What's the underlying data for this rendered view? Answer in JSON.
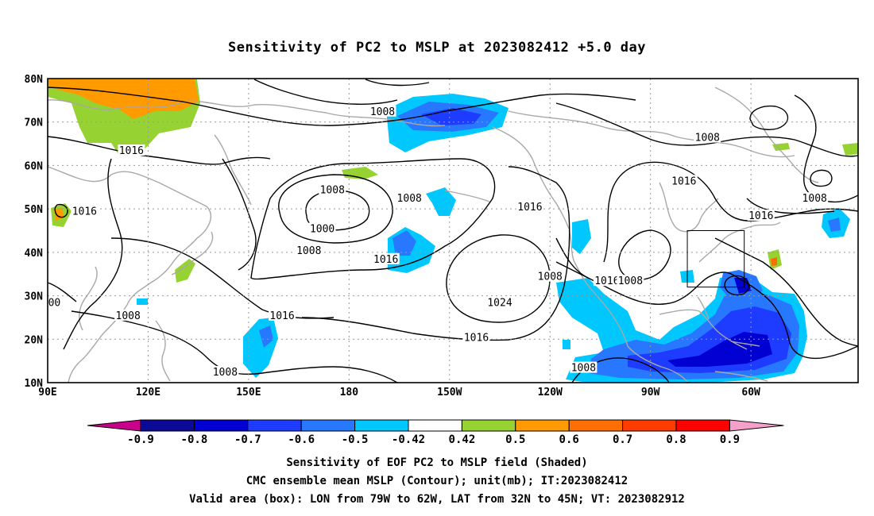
{
  "title": "Sensitivity of PC2 to MSLP at 2023082412 +5.0 day",
  "map": {
    "lon_ticks": [
      "90E",
      "120E",
      "150E",
      "180",
      "150W",
      "120W",
      "90W",
      "60W"
    ],
    "lat_ticks": [
      "80N",
      "70N",
      "60N",
      "50N",
      "40N",
      "30N",
      "20N",
      "10N"
    ],
    "contour_labels": [
      {
        "text": "1008",
        "lon": -170,
        "lat": 72
      },
      {
        "text": "1008",
        "lon": -73,
        "lat": 66
      },
      {
        "text": "1016",
        "lon": 115,
        "lat": 63
      },
      {
        "text": "1008",
        "lon": 175,
        "lat": 54
      },
      {
        "text": "1008",
        "lon": -162,
        "lat": 52
      },
      {
        "text": "1016",
        "lon": -80,
        "lat": 56
      },
      {
        "text": "1008",
        "lon": -41,
        "lat": 52
      },
      {
        "text": "1016",
        "lon": -57,
        "lat": 48
      },
      {
        "text": "1016",
        "lon": 101,
        "lat": 49
      },
      {
        "text": "1000",
        "lon": 172,
        "lat": 45
      },
      {
        "text": "1008",
        "lon": 168,
        "lat": 40
      },
      {
        "text": "1016",
        "lon": -126,
        "lat": 50
      },
      {
        "text": "1016",
        "lon": -169,
        "lat": 38
      },
      {
        "text": "1008",
        "lon": -120,
        "lat": 34
      },
      {
        "text": "1016",
        "lon": -103,
        "lat": 33
      },
      {
        "text": "1008",
        "lon": -96,
        "lat": 33
      },
      {
        "text": "1024",
        "lon": -135,
        "lat": 28
      },
      {
        "text": "00",
        "lon": 92,
        "lat": 28
      },
      {
        "text": "1008",
        "lon": 114,
        "lat": 25
      },
      {
        "text": "1016",
        "lon": 160,
        "lat": 25
      },
      {
        "text": "1016",
        "lon": -142,
        "lat": 20
      },
      {
        "text": "1008",
        "lon": 143,
        "lat": 12
      },
      {
        "text": "1008",
        "lon": -110,
        "lat": 13
      }
    ],
    "valid_box": {
      "lon_min": -79,
      "lon_max": -62,
      "lat_min": 32,
      "lat_max": 45
    }
  },
  "colorbar": {
    "labels": [
      "-0.9",
      "-0.8",
      "-0.7",
      "-0.6",
      "-0.5",
      "-0.42",
      "0.42",
      "0.5",
      "0.6",
      "0.7",
      "0.8",
      "0.9"
    ],
    "colors": [
      "#0a0a96",
      "#0000d2",
      "#1e3cff",
      "#2878ff",
      "#00c8ff",
      "#ffffff",
      "#96d232",
      "#ff9a00",
      "#ff6e00",
      "#ff3c00",
      "#ff0000"
    ],
    "low_arrow_color": "#c8008c",
    "high_arrow_color": "#f5a0c8"
  },
  "caption": {
    "line1": "Sensitivity of EOF PC2 to MSLP field (Shaded)",
    "line2": "CMC ensemble mean MSLP (Contour); unit(mb); IT:2023082412",
    "line3": "Valid area (box): LON from 79W to 62W, LAT from 32N to 45N; VT: 2023082912"
  }
}
